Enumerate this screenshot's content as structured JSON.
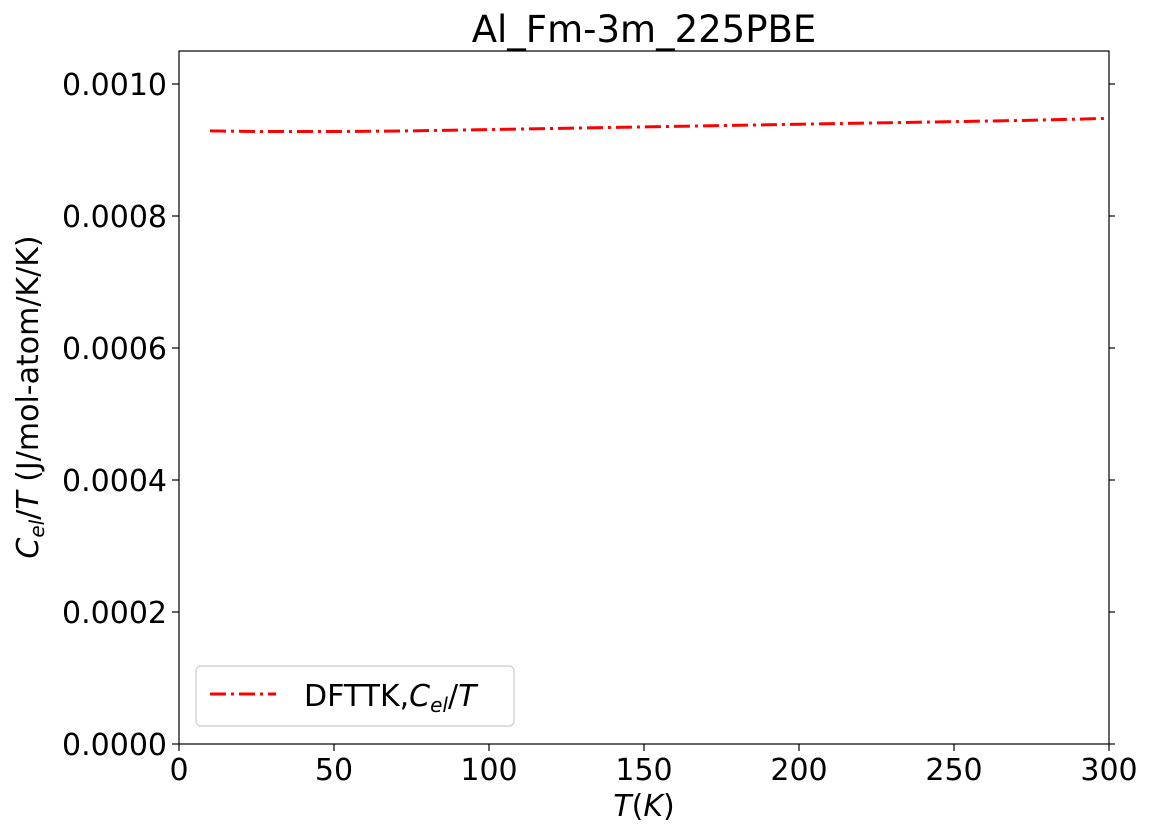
{
  "chart_data": {
    "type": "line",
    "title": "Al_Fm-3m_225PBE",
    "xlabel": {
      "main": "T",
      "paren_open": "(",
      "paren_var": "K",
      "paren_close": ")"
    },
    "ylabel": {
      "c": "C",
      "sub": "el",
      "slash": "/",
      "t": "T",
      "units": " (J/mol-atom/K/K)"
    },
    "xlim": [
      0,
      300
    ],
    "ylim": [
      0,
      0.00105
    ],
    "x_ticks": [
      0,
      50,
      100,
      150,
      200,
      250,
      300
    ],
    "y_ticks": [
      0,
      0.0002,
      0.0004,
      0.0006,
      0.0008,
      0.001
    ],
    "x_tick_labels": [
      "0",
      "50",
      "100",
      "150",
      "200",
      "250",
      "300"
    ],
    "y_tick_labels": [
      "0.0000",
      "0.0002",
      "0.0004",
      "0.0006",
      "0.0008",
      "0.0010"
    ],
    "grid": false,
    "legend_position": "lower-left",
    "series": [
      {
        "name": {
          "prefix": "DFTTK,",
          "c": "C",
          "sub": "el",
          "slash": "/",
          "t": "T"
        },
        "color": "#ff0000",
        "line_style": "dash-dot",
        "x": [
          10,
          25,
          50,
          75,
          100,
          125,
          150,
          175,
          200,
          225,
          250,
          275,
          300
        ],
        "y": [
          0.000929,
          0.000928,
          0.000928,
          0.000929,
          0.000931,
          0.000933,
          0.000935,
          0.000937,
          0.000939,
          0.000941,
          0.000943,
          0.000945,
          0.000948
        ]
      }
    ]
  }
}
